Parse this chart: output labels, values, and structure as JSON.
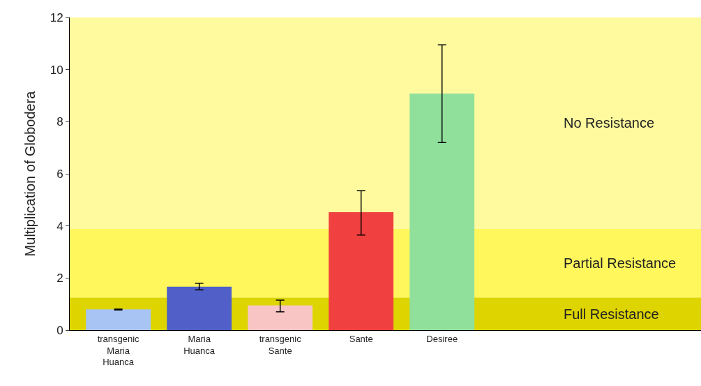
{
  "chart_data": {
    "type": "bar",
    "ylabel": "Multiplication of Globodera",
    "categories": [
      "transgenic\nMaria\nHuanca",
      "Maria\nHuanca",
      "transgenic\nSante",
      "Sante",
      "Desiree"
    ],
    "values": [
      0.8,
      1.67,
      0.95,
      4.53,
      9.08
    ],
    "colors": [
      "#a8c4f4",
      "#5060c8",
      "#f8c4c4",
      "#f04040",
      "#90e09c"
    ],
    "errors": [
      [
        0.78,
        0.81
      ],
      [
        1.55,
        1.8
      ],
      [
        0.7,
        1.15
      ],
      [
        3.65,
        5.35
      ],
      [
        7.2,
        10.95
      ]
    ],
    "ylim": [
      0,
      12
    ],
    "yticks": [
      0,
      2,
      4,
      6,
      8,
      10,
      12
    ],
    "grid": false,
    "bands": [
      {
        "axis": "y",
        "from": 0,
        "to": 1.25,
        "label": "Full Resistance",
        "color": "#ddd400"
      },
      {
        "axis": "y",
        "from": 1.25,
        "to": 3.9,
        "label": "Partial Resistance",
        "color": "#fff75c"
      },
      {
        "axis": "y",
        "from": 3.9,
        "to": 12,
        "label": "No Resistance",
        "color": "#fffa9e"
      }
    ]
  }
}
